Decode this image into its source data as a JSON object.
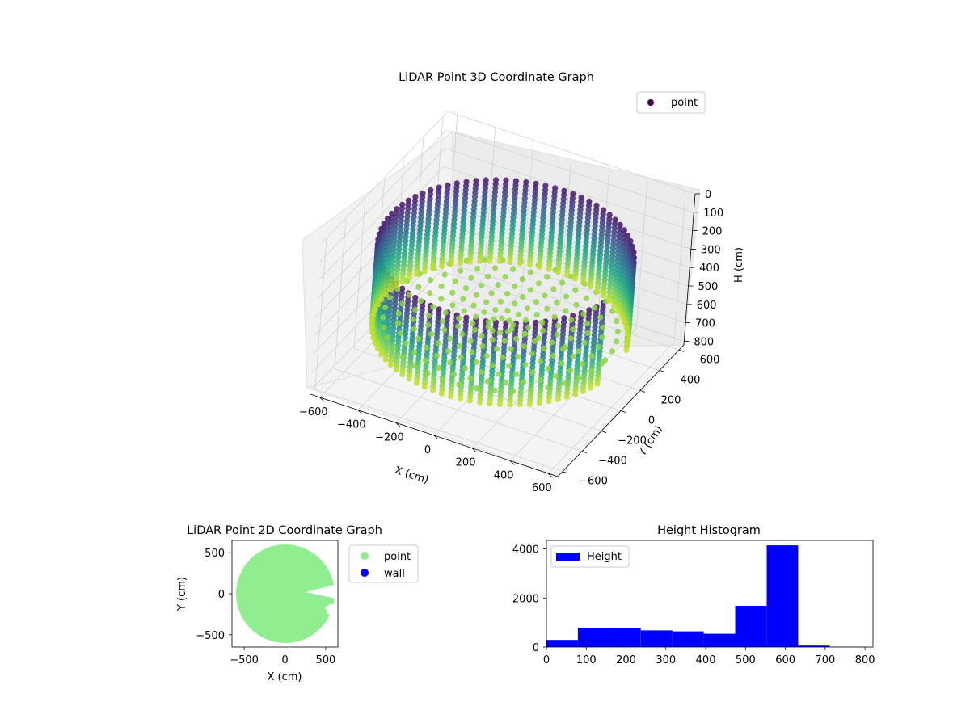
{
  "chart_data": [
    {
      "type": "scatter",
      "subtype": "3d",
      "title": "LiDAR Point 3D Coordinate Graph",
      "xlabel": "X (cm)",
      "ylabel": "Y (cm)",
      "zlabel": "H (cm)",
      "xlim": [
        -650,
        650
      ],
      "ylim": [
        -650,
        650
      ],
      "zlim": [
        0,
        820
      ],
      "z_inverted": true,
      "xticks": [
        "−600",
        "−400",
        "−200",
        "0",
        "200",
        "400",
        "600"
      ],
      "yticks": [
        "−600",
        "−400",
        "−200",
        "0",
        "200",
        "400",
        "600"
      ],
      "zticks": [
        "0",
        "100",
        "200",
        "300",
        "400",
        "500",
        "600",
        "700",
        "800"
      ],
      "legend": {
        "position": "top-right",
        "entries": [
          {
            "name": "point",
            "color": "#440154"
          }
        ]
      },
      "colormap": "viridis",
      "description_points": {
        "wall_radius_cm": 600,
        "wall_height_range_cm": [
          180,
          620
        ],
        "floor_height_cm": 580
      },
      "grid": true
    },
    {
      "type": "scatter",
      "title": "LiDAR Point 2D Coordinate Graph",
      "xlabel": "X (cm)",
      "ylabel": "Y (cm)",
      "xlim": [
        -650,
        650
      ],
      "ylim": [
        -650,
        650
      ],
      "xticks": [
        "−500",
        "0",
        "500"
      ],
      "yticks": [
        "500",
        "0",
        "−500"
      ],
      "legend": {
        "position": "outside-right",
        "entries": [
          {
            "name": "point",
            "color": "#90ee90"
          },
          {
            "name": "wall",
            "color": "#0000ff"
          }
        ]
      },
      "grid": false
    },
    {
      "type": "bar",
      "subtype": "histogram",
      "title": "Height Histogram",
      "xlim": [
        0,
        820
      ],
      "ylim": [
        0,
        4350
      ],
      "xticks": [
        "0",
        "100",
        "200",
        "300",
        "400",
        "500",
        "600",
        "700",
        "800"
      ],
      "yticks": [
        "0",
        "2000",
        "4000"
      ],
      "legend": {
        "position": "top-left",
        "entries": [
          {
            "name": "Height",
            "color": "#0000ff"
          }
        ]
      },
      "bins": [
        {
          "start": 0,
          "end": 79,
          "count": 290
        },
        {
          "start": 79,
          "end": 158,
          "count": 780
        },
        {
          "start": 158,
          "end": 237,
          "count": 780
        },
        {
          "start": 237,
          "end": 316,
          "count": 680
        },
        {
          "start": 316,
          "end": 395,
          "count": 640
        },
        {
          "start": 395,
          "end": 474,
          "count": 540
        },
        {
          "start": 474,
          "end": 553,
          "count": 1680
        },
        {
          "start": 553,
          "end": 632,
          "count": 4150
        },
        {
          "start": 632,
          "end": 711,
          "count": 60
        },
        {
          "start": 711,
          "end": 790,
          "count": 10
        }
      ],
      "grid": false
    }
  ]
}
